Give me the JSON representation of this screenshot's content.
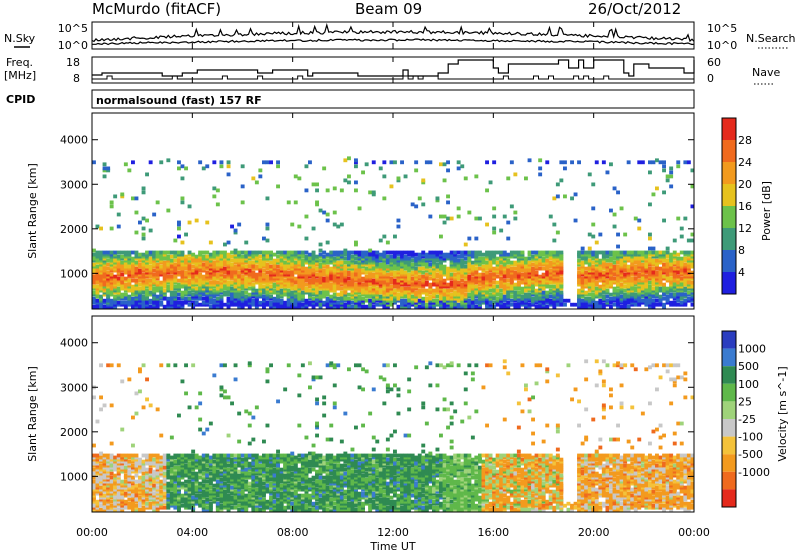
{
  "header": {
    "station": "McMurdo (fitACF)",
    "beam": "Beam 09",
    "date": "26/Oct/2012"
  },
  "noise_panel": {
    "left_label": "N.Sky",
    "right_label": "N.Search",
    "ticks_left": [
      "10^5",
      "10^0"
    ],
    "ticks_right": [
      "10^5",
      "10^0"
    ]
  },
  "freq_panel": {
    "left_label_1": "Freq.",
    "left_label_2": "[MHz]",
    "right_label": "Nave",
    "ticks_left": [
      "18",
      "8"
    ],
    "ticks_right": [
      "60",
      "0"
    ]
  },
  "cpid": {
    "label": "CPID",
    "mode": "normalsound (fast) 157 RF"
  },
  "chart_data": [
    {
      "type": "heatmap",
      "name": "power",
      "ylabel": "Slant Range [km]",
      "ylim": [
        200,
        4600
      ],
      "yticks": [
        1000,
        2000,
        3000,
        4000
      ],
      "xlim": [
        0,
        24
      ],
      "colorbar": {
        "label": "Power [dB]",
        "ticks": [
          4,
          8,
          12,
          16,
          20,
          24,
          28
        ],
        "colors": [
          "#1f1fe0",
          "#2a62c8",
          "#3e9a78",
          "#6cc24a",
          "#e6c21e",
          "#f29a1e",
          "#f06a1e",
          "#e52a1c"
        ]
      }
    },
    {
      "type": "heatmap",
      "name": "velocity",
      "ylabel": "Slant Range [km]",
      "ylim": [
        200,
        4600
      ],
      "yticks": [
        1000,
        2000,
        3000,
        4000
      ],
      "xlim": [
        0,
        24
      ],
      "xlabel": "Time UT",
      "xticks": [
        "00:00",
        "04:00",
        "08:00",
        "12:00",
        "16:00",
        "20:00",
        "00:00"
      ],
      "colorbar": {
        "label": "Velocity [m s^-1]",
        "ticks": [
          "1000",
          "500",
          "100",
          "25",
          "-25",
          "-100",
          "-500",
          "-1000"
        ],
        "colors": [
          "#2b3dbf",
          "#3a7bd0",
          "#2f8a52",
          "#5fb84a",
          "#9fd37a",
          "#c8c8c8",
          "#f4c23a",
          "#f39a1e",
          "#ef6a1e",
          "#e52a1c"
        ]
      }
    }
  ]
}
